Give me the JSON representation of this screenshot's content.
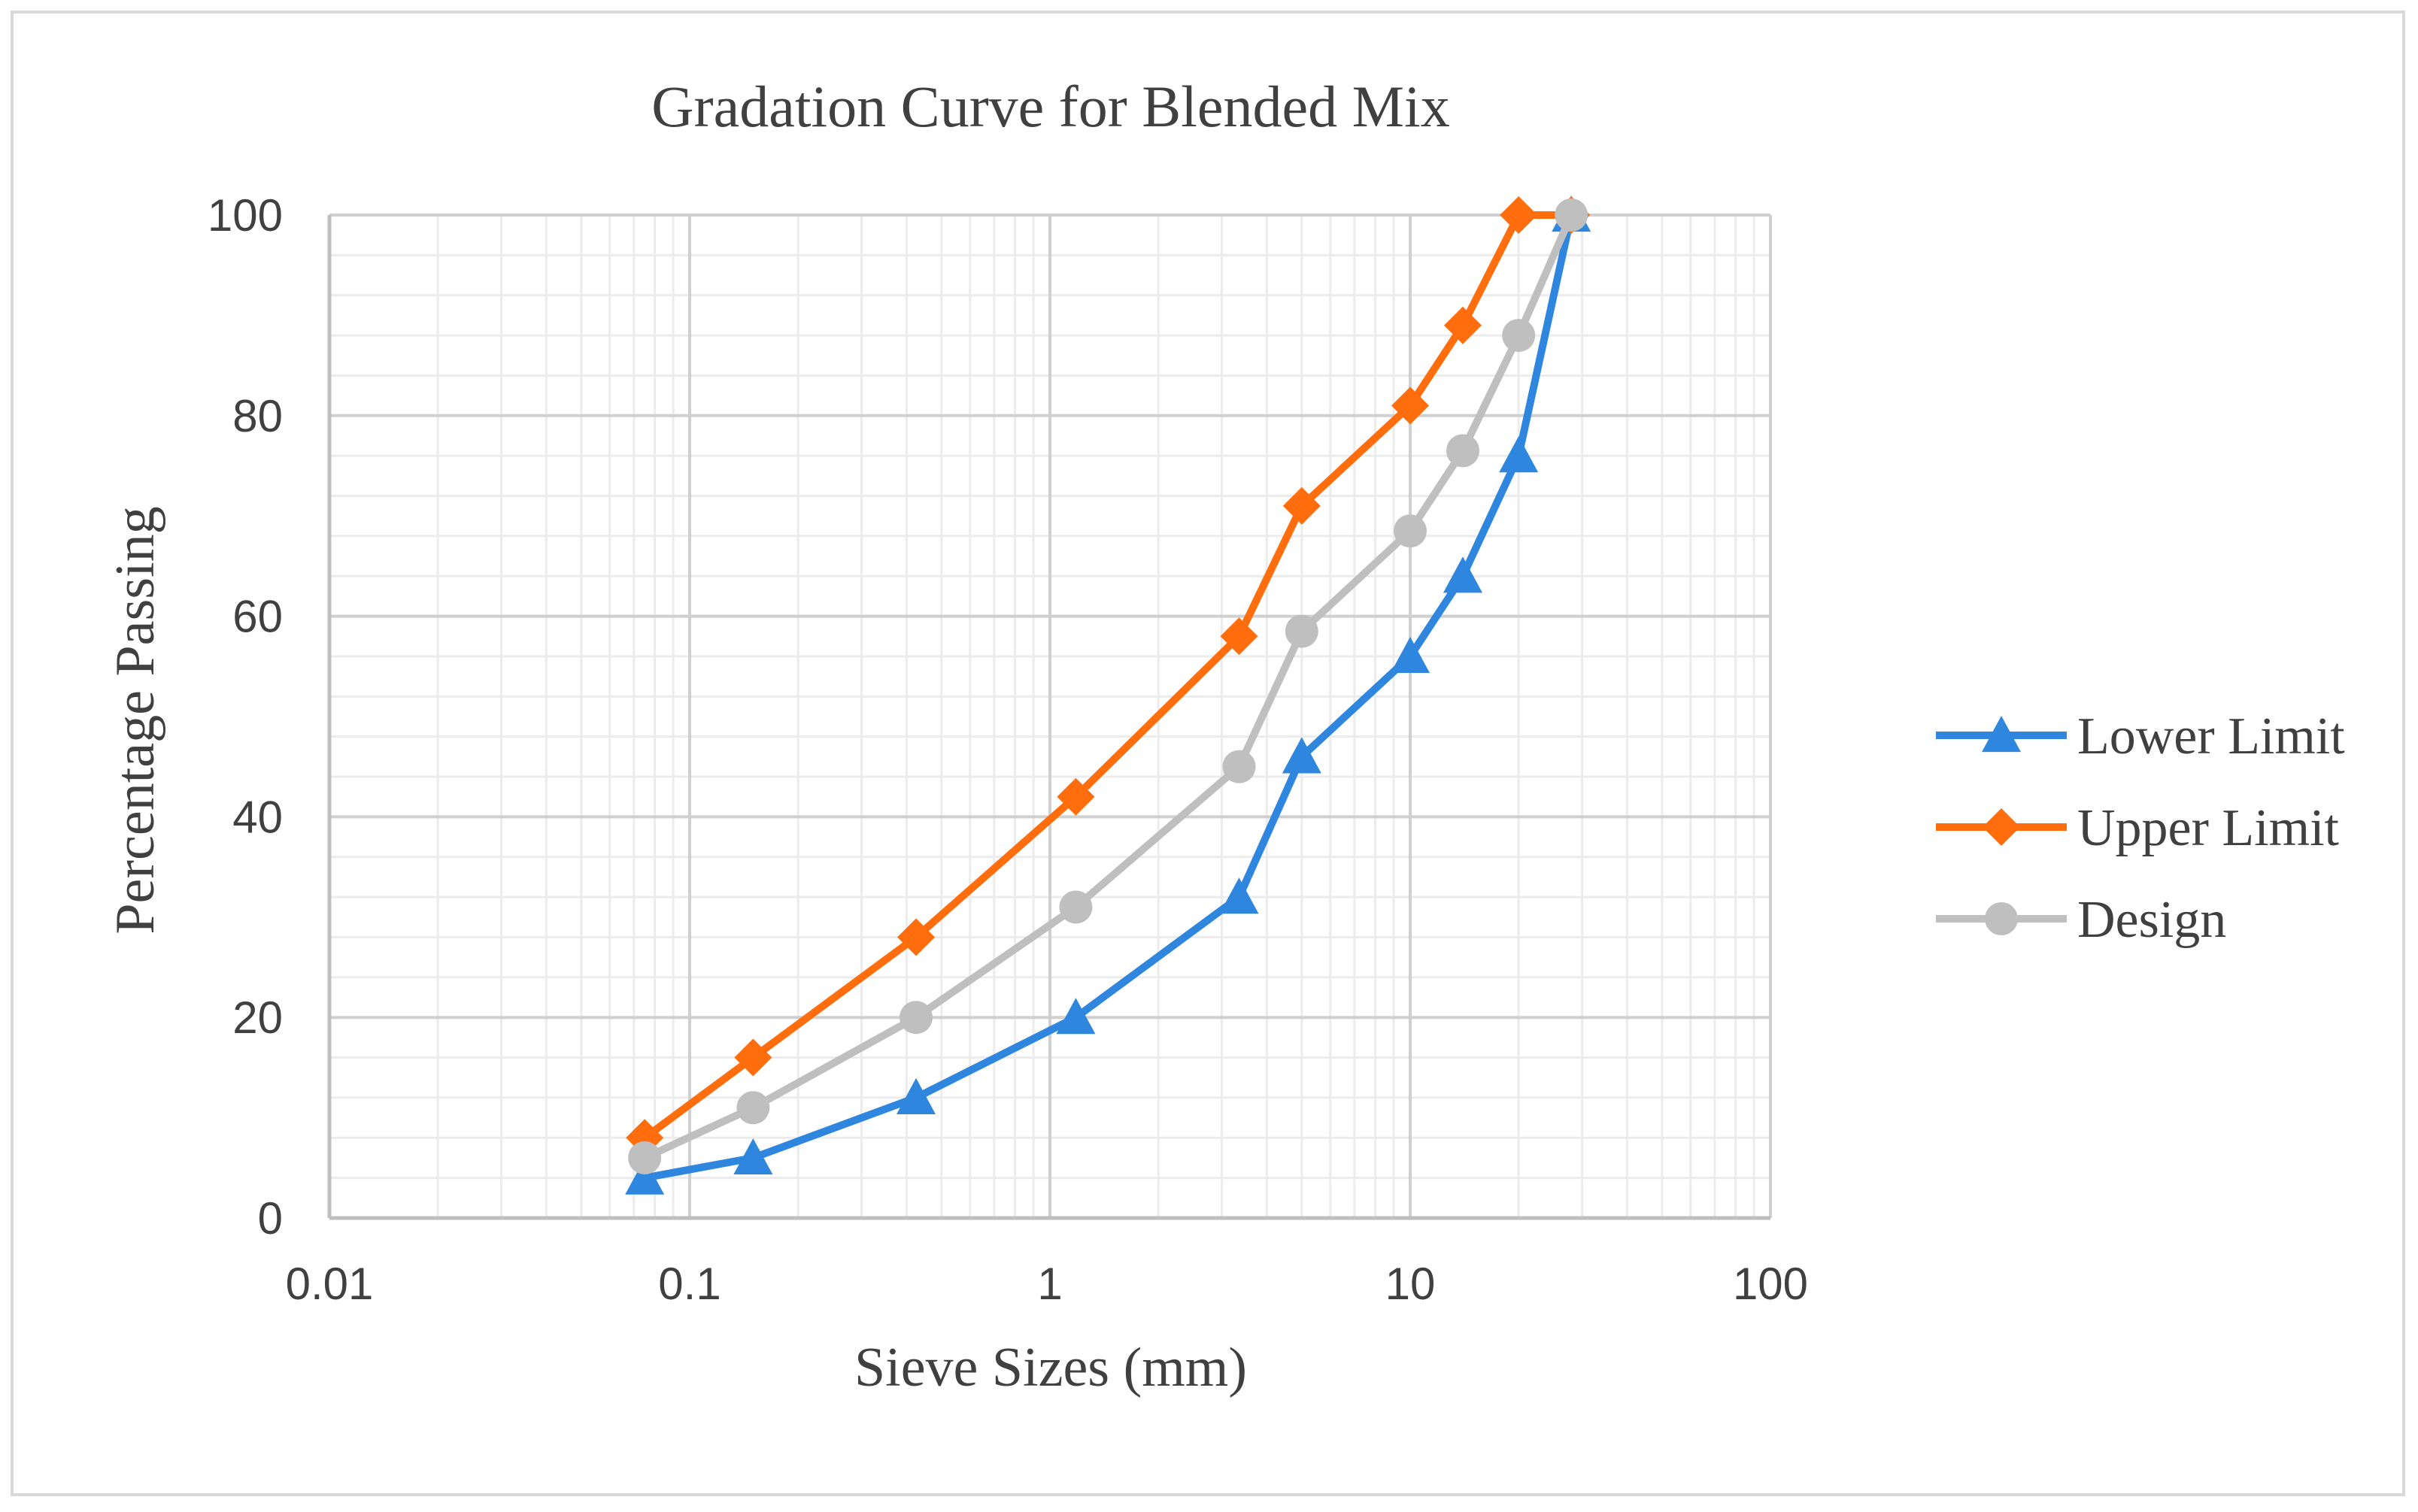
{
  "chart_data": {
    "type": "line",
    "title": "Gradation Curve for Blended Mix",
    "xlabel": "Sieve Sizes (mm)",
    "ylabel": "Percentage Passing",
    "xscale": "log",
    "xlim": [
      0.01,
      100
    ],
    "ylim": [
      0,
      100
    ],
    "x_ticks": [
      0.01,
      0.1,
      1,
      10,
      100
    ],
    "x_tick_labels": [
      "0.01",
      "0.1",
      "1",
      "10",
      "100"
    ],
    "y_ticks": [
      0,
      20,
      40,
      60,
      80,
      100
    ],
    "y_tick_labels": [
      "0",
      "20",
      "40",
      "60",
      "80",
      "100"
    ],
    "grid": true,
    "legend_position": "right",
    "x": [
      0.075,
      0.15,
      0.425,
      1.18,
      3.35,
      5,
      10,
      14,
      20,
      28
    ],
    "series": [
      {
        "name": "Lower Limit",
        "marker": "triangle",
        "color": "#2E86DE",
        "values": [
          4,
          6,
          12,
          20,
          32,
          46,
          56,
          64,
          76,
          100
        ]
      },
      {
        "name": "Upper Limit",
        "marker": "diamond",
        "color": "#FF6D0D",
        "values": [
          8,
          16,
          28,
          42,
          58,
          71,
          81,
          89,
          100,
          100
        ]
      },
      {
        "name": "Design",
        "marker": "circle",
        "color": "#BFBFBF",
        "values": [
          6,
          11,
          20,
          31,
          45,
          58.5,
          68.5,
          76.5,
          88,
          100
        ]
      }
    ]
  }
}
